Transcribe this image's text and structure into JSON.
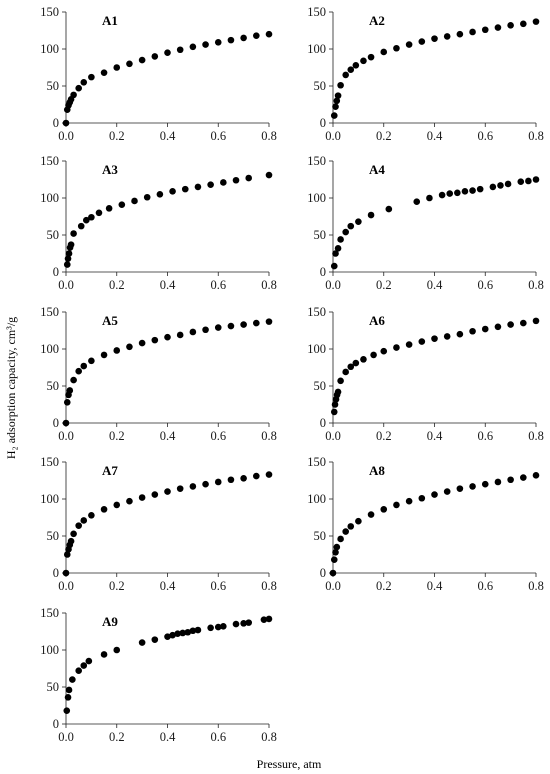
{
  "figure": {
    "ylabel": "H₂ adsorption capacity, cm³/g",
    "xlabel": "Pressure, atm"
  },
  "chart_data": [
    {
      "type": "scatter",
      "title": "A1",
      "xlim": [
        0,
        0.8
      ],
      "ylim": [
        0,
        150
      ],
      "xticks": [
        "0.0",
        "0.2",
        "0.4",
        "0.6",
        "0.8"
      ],
      "yticks": [
        "0",
        "50",
        "100",
        "150"
      ],
      "series": [
        {
          "x": [
            0,
            0.005,
            0.01,
            0.015,
            0.02,
            0.03,
            0.05,
            0.07,
            0.1,
            0.15,
            0.2,
            0.25,
            0.3,
            0.35,
            0.4,
            0.45,
            0.5,
            0.55,
            0.6,
            0.65,
            0.7,
            0.75,
            0.8
          ],
          "y": [
            0,
            18,
            24,
            28,
            32,
            38,
            47,
            55,
            62,
            68,
            75,
            80,
            85,
            90,
            95,
            99,
            103,
            106,
            109,
            112,
            115,
            118,
            120
          ]
        }
      ]
    },
    {
      "type": "scatter",
      "title": "A2",
      "xlim": [
        0,
        0.8
      ],
      "ylim": [
        0,
        150
      ],
      "xticks": [
        "0.0",
        "0.2",
        "0.4",
        "0.6",
        "0.8"
      ],
      "yticks": [
        "0",
        "50",
        "100",
        "150"
      ],
      "series": [
        {
          "x": [
            0.005,
            0.01,
            0.015,
            0.02,
            0.03,
            0.05,
            0.07,
            0.09,
            0.12,
            0.15,
            0.2,
            0.25,
            0.3,
            0.35,
            0.4,
            0.45,
            0.5,
            0.55,
            0.6,
            0.65,
            0.7,
            0.75,
            0.8
          ],
          "y": [
            10,
            22,
            30,
            37,
            51,
            65,
            72,
            78,
            84,
            89,
            96,
            101,
            106,
            110,
            114,
            117,
            120,
            123,
            126,
            129,
            132,
            134,
            137
          ]
        }
      ]
    },
    {
      "type": "scatter",
      "title": "A3",
      "xlim": [
        0,
        0.8
      ],
      "ylim": [
        0,
        150
      ],
      "xticks": [
        "0.0",
        "0.2",
        "0.4",
        "0.6",
        "0.8"
      ],
      "yticks": [
        "0",
        "50",
        "100",
        "150"
      ],
      "series": [
        {
          "x": [
            0.005,
            0.008,
            0.012,
            0.016,
            0.02,
            0.03,
            0.06,
            0.08,
            0.1,
            0.13,
            0.17,
            0.22,
            0.27,
            0.32,
            0.37,
            0.42,
            0.47,
            0.52,
            0.57,
            0.62,
            0.67,
            0.72,
            0.8
          ],
          "y": [
            10,
            18,
            25,
            33,
            37,
            52,
            62,
            70,
            74,
            80,
            86,
            91,
            96,
            101,
            105,
            109,
            112,
            115,
            118,
            121,
            124,
            127,
            131
          ]
        }
      ]
    },
    {
      "type": "scatter",
      "title": "A4",
      "xlim": [
        0,
        0.8
      ],
      "ylim": [
        0,
        150
      ],
      "xticks": [
        "0.0",
        "0.2",
        "0.4",
        "0.6",
        "0.8"
      ],
      "yticks": [
        "0",
        "50",
        "100",
        "150"
      ],
      "series": [
        {
          "x": [
            0.005,
            0.01,
            0.02,
            0.03,
            0.05,
            0.07,
            0.1,
            0.15,
            0.22,
            0.33,
            0.38,
            0.43,
            0.46,
            0.49,
            0.52,
            0.55,
            0.58,
            0.63,
            0.66,
            0.69,
            0.74,
            0.77,
            0.8
          ],
          "y": [
            8,
            25,
            32,
            44,
            54,
            62,
            68,
            77,
            85,
            95,
            100,
            104,
            106,
            107,
            109,
            110,
            112,
            115,
            117,
            119,
            122,
            123,
            125
          ]
        }
      ]
    },
    {
      "type": "scatter",
      "title": "A5",
      "xlim": [
        0,
        0.8
      ],
      "ylim": [
        0,
        150
      ],
      "xticks": [
        "0.0",
        "0.2",
        "0.4",
        "0.6",
        "0.8"
      ],
      "yticks": [
        "0",
        "50",
        "100",
        "150"
      ],
      "series": [
        {
          "x": [
            0,
            0.005,
            0.01,
            0.015,
            0.03,
            0.05,
            0.07,
            0.1,
            0.15,
            0.2,
            0.25,
            0.3,
            0.35,
            0.4,
            0.45,
            0.5,
            0.55,
            0.6,
            0.65,
            0.7,
            0.75,
            0.8
          ],
          "y": [
            0,
            28,
            38,
            44,
            58,
            70,
            77,
            84,
            92,
            98,
            103,
            108,
            112,
            116,
            119,
            123,
            126,
            129,
            131,
            133,
            135,
            137
          ]
        }
      ]
    },
    {
      "type": "scatter",
      "title": "A6",
      "xlim": [
        0,
        0.8
      ],
      "ylim": [
        0,
        150
      ],
      "xticks": [
        "0.0",
        "0.2",
        "0.4",
        "0.6",
        "0.8"
      ],
      "yticks": [
        "0",
        "50",
        "100",
        "150"
      ],
      "series": [
        {
          "x": [
            0.005,
            0.008,
            0.012,
            0.016,
            0.02,
            0.03,
            0.05,
            0.07,
            0.09,
            0.12,
            0.16,
            0.2,
            0.25,
            0.3,
            0.35,
            0.4,
            0.45,
            0.5,
            0.55,
            0.6,
            0.65,
            0.7,
            0.75,
            0.8
          ],
          "y": [
            15,
            25,
            32,
            38,
            42,
            57,
            69,
            76,
            81,
            86,
            92,
            97,
            102,
            106,
            110,
            114,
            117,
            120,
            124,
            127,
            130,
            133,
            135,
            138
          ]
        }
      ]
    },
    {
      "type": "scatter",
      "title": "A7",
      "xlim": [
        0,
        0.8
      ],
      "ylim": [
        0,
        150
      ],
      "xticks": [
        "0.0",
        "0.2",
        "0.4",
        "0.6",
        "0.8"
      ],
      "yticks": [
        "0",
        "50",
        "100",
        "150"
      ],
      "series": [
        {
          "x": [
            0,
            0.005,
            0.01,
            0.015,
            0.02,
            0.03,
            0.05,
            0.07,
            0.1,
            0.15,
            0.2,
            0.25,
            0.3,
            0.35,
            0.4,
            0.45,
            0.5,
            0.55,
            0.6,
            0.65,
            0.7,
            0.75,
            0.8
          ],
          "y": [
            0,
            25,
            32,
            38,
            43,
            53,
            64,
            71,
            78,
            86,
            92,
            97,
            102,
            106,
            110,
            114,
            117,
            120,
            123,
            126,
            128,
            131,
            133
          ]
        }
      ]
    },
    {
      "type": "scatter",
      "title": "A8",
      "xlim": [
        0,
        0.8
      ],
      "ylim": [
        0,
        150
      ],
      "xticks": [
        "0.0",
        "0.2",
        "0.4",
        "0.6",
        "0.8"
      ],
      "yticks": [
        "0",
        "50",
        "100",
        "150"
      ],
      "series": [
        {
          "x": [
            0,
            0.005,
            0.01,
            0.015,
            0.03,
            0.05,
            0.07,
            0.1,
            0.15,
            0.2,
            0.25,
            0.3,
            0.35,
            0.4,
            0.45,
            0.5,
            0.55,
            0.6,
            0.65,
            0.7,
            0.75,
            0.8
          ],
          "y": [
            0,
            18,
            28,
            35,
            46,
            56,
            63,
            70,
            79,
            86,
            92,
            97,
            101,
            106,
            110,
            114,
            117,
            120,
            123,
            126,
            129,
            132
          ]
        }
      ]
    },
    {
      "type": "scatter",
      "title": "A9",
      "xlim": [
        0,
        0.8
      ],
      "ylim": [
        0,
        150
      ],
      "xticks": [
        "0.0",
        "0.2",
        "0.4",
        "0.6",
        "0.8"
      ],
      "yticks": [
        "0",
        "50",
        "100",
        "150"
      ],
      "series": [
        {
          "x": [
            0.003,
            0.008,
            0.012,
            0.025,
            0.05,
            0.07,
            0.09,
            0.15,
            0.2,
            0.3,
            0.35,
            0.4,
            0.42,
            0.44,
            0.46,
            0.48,
            0.5,
            0.52,
            0.57,
            0.6,
            0.62,
            0.67,
            0.7,
            0.72,
            0.78,
            0.8
          ],
          "y": [
            18,
            36,
            46,
            60,
            72,
            79,
            85,
            94,
            100,
            110,
            114,
            118,
            120,
            122,
            123,
            124,
            126,
            127,
            130,
            131,
            132,
            135,
            136,
            137,
            141,
            142
          ]
        }
      ]
    }
  ]
}
